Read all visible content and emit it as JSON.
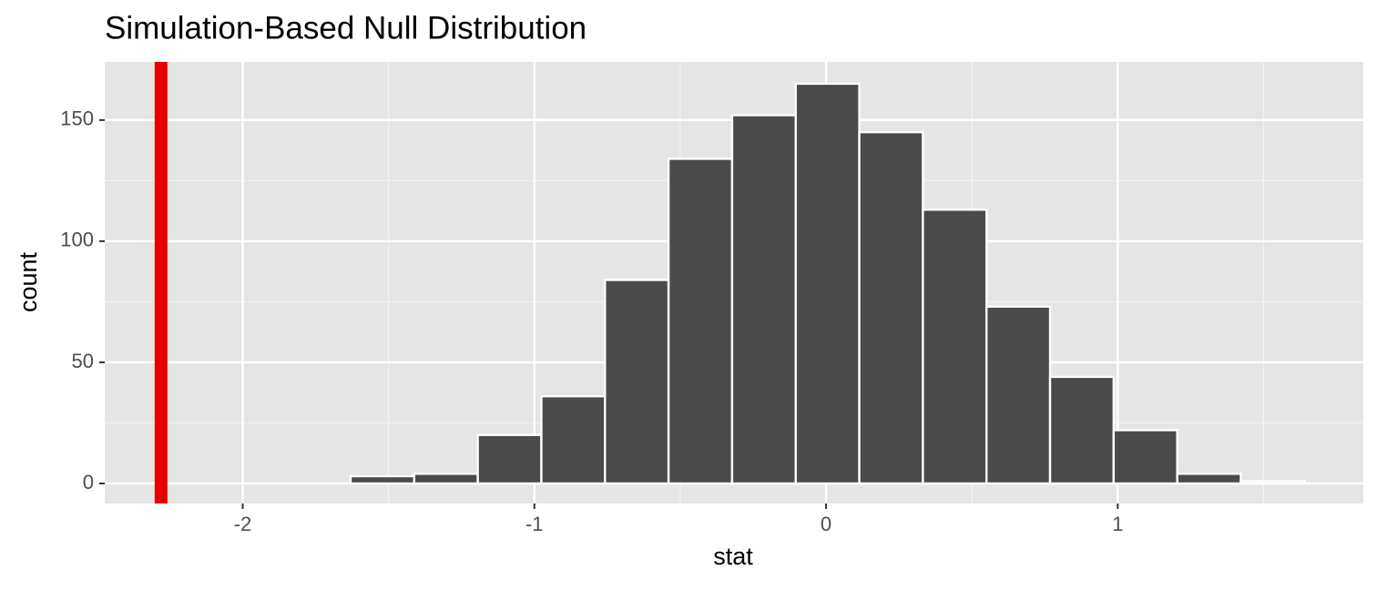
{
  "chart_data": {
    "type": "histogram",
    "title": "Simulation-Based Null Distribution",
    "x_label": "stat",
    "y_label": "count",
    "bins": [
      -1.63,
      -1.412,
      -1.194,
      -0.976,
      -0.758,
      -0.54,
      -0.322,
      -0.104,
      0.114,
      0.332,
      0.55,
      0.768,
      0.986,
      1.204,
      1.422,
      1.64
    ],
    "values": [
      3,
      4,
      20,
      36,
      84,
      134,
      152,
      165,
      145,
      113,
      73,
      44,
      22,
      4,
      1
    ],
    "color": "#4a4a4a",
    "bar_colors": [
      "#4a4a4a",
      "#4a4a4a",
      "#4a4a4a",
      "#4a4a4a",
      "#4a4a4a",
      "#4a4a4a",
      "#4a4a4a",
      "#4a4a4a",
      "#4a4a4a",
      "#4a4a4a",
      "#4a4a4a",
      "#4a4a4a",
      "#4a4a4a",
      "#4a4a4a",
      "#f4c6cc"
    ],
    "vline": {
      "value": -2.28,
      "color": "#e60000"
    },
    "xlim": [
      -2.473,
      1.842
    ],
    "ylim": [
      -8.27,
      174
    ],
    "xticks": [
      -2,
      -1,
      0,
      1
    ],
    "yticks": [
      0,
      50,
      100,
      150
    ],
    "grid": true
  }
}
